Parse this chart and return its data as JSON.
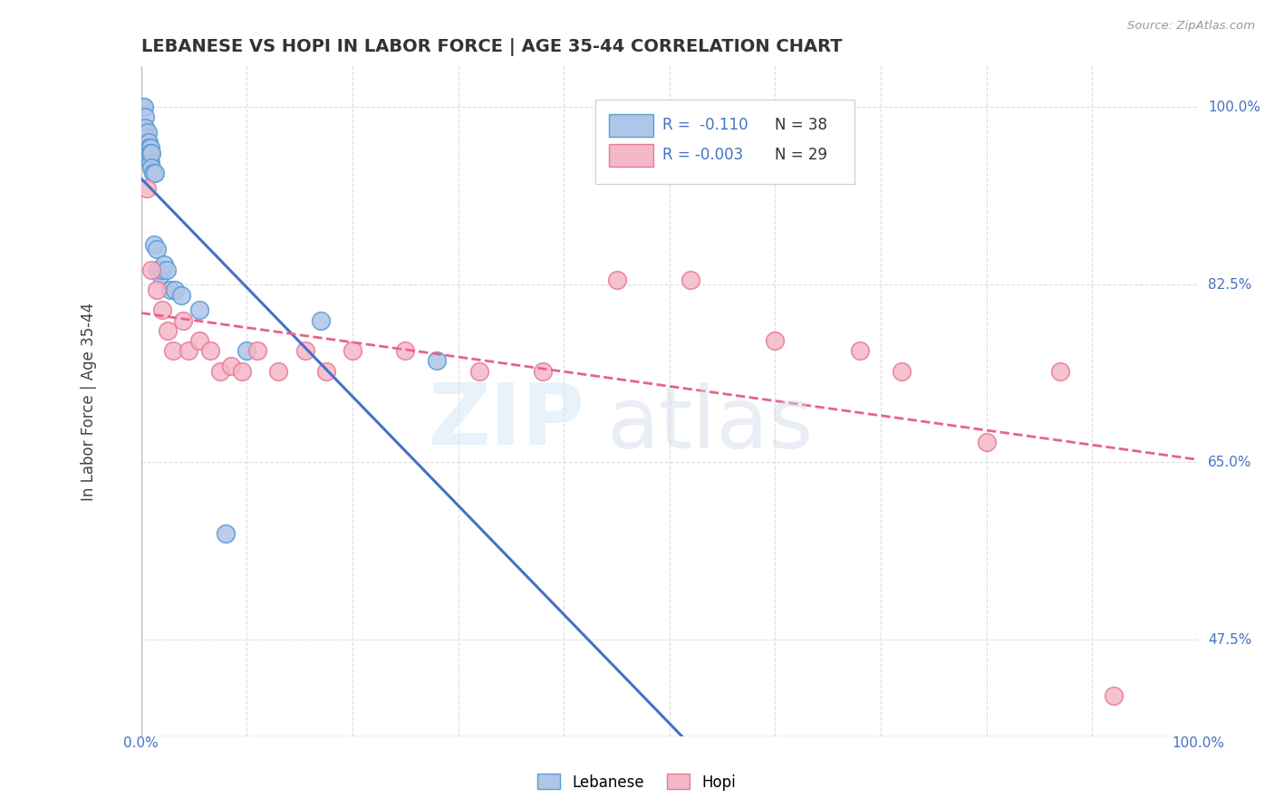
{
  "title": "LEBANESE VS HOPI IN LABOR FORCE | AGE 35-44 CORRELATION CHART",
  "source_text": "Source: ZipAtlas.com",
  "ylabel": "In Labor Force | Age 35-44",
  "x_min": 0.0,
  "x_max": 1.0,
  "y_min": 0.38,
  "y_max": 1.04,
  "ytick_labels": [
    "47.5%",
    "65.0%",
    "82.5%",
    "100.0%"
  ],
  "ytick_values": [
    0.475,
    0.65,
    0.825,
    1.0
  ],
  "xtick_values": [
    0.0,
    0.1,
    0.2,
    0.3,
    0.4,
    0.5,
    0.6,
    0.7,
    0.8,
    0.9,
    1.0
  ],
  "lebanese_color": "#aec6e8",
  "lebanese_edge_color": "#5b9bd5",
  "hopi_color": "#f4b8c8",
  "hopi_edge_color": "#e87a9a",
  "lebanese_line_color": "#4472c4",
  "hopi_line_color": "#e8628a",
  "legend_R_lebanese": "R =  -0.110",
  "legend_N_lebanese": "N = 38",
  "legend_R_hopi": "R = -0.003",
  "legend_N_hopi": "N = 29",
  "watermark_zip": "ZIP",
  "watermark_atlas": "atlas",
  "lebanese_x": [
    0.002,
    0.003,
    0.004,
    0.004,
    0.005,
    0.005,
    0.005,
    0.006,
    0.006,
    0.006,
    0.007,
    0.007,
    0.007,
    0.008,
    0.008,
    0.008,
    0.009,
    0.009,
    0.009,
    0.01,
    0.01,
    0.011,
    0.012,
    0.013,
    0.015,
    0.016,
    0.018,
    0.02,
    0.022,
    0.024,
    0.028,
    0.032,
    0.038,
    0.055,
    0.08,
    0.1,
    0.17,
    0.28
  ],
  "lebanese_y": [
    1.0,
    1.0,
    0.99,
    0.98,
    0.97,
    0.965,
    0.955,
    0.975,
    0.96,
    0.95,
    0.965,
    0.96,
    0.955,
    0.96,
    0.955,
    0.95,
    0.96,
    0.955,
    0.945,
    0.955,
    0.94,
    0.935,
    0.865,
    0.935,
    0.86,
    0.84,
    0.835,
    0.84,
    0.845,
    0.84,
    0.82,
    0.82,
    0.815,
    0.8,
    0.58,
    0.76,
    0.79,
    0.75
  ],
  "hopi_x": [
    0.005,
    0.01,
    0.015,
    0.02,
    0.025,
    0.03,
    0.04,
    0.045,
    0.055,
    0.065,
    0.075,
    0.085,
    0.095,
    0.11,
    0.13,
    0.155,
    0.175,
    0.2,
    0.25,
    0.32,
    0.38,
    0.45,
    0.52,
    0.6,
    0.68,
    0.72,
    0.8,
    0.87,
    0.92
  ],
  "hopi_y": [
    0.92,
    0.84,
    0.82,
    0.8,
    0.78,
    0.76,
    0.79,
    0.76,
    0.77,
    0.76,
    0.74,
    0.745,
    0.74,
    0.76,
    0.74,
    0.76,
    0.74,
    0.76,
    0.76,
    0.74,
    0.74,
    0.83,
    0.83,
    0.77,
    0.76,
    0.74,
    0.67,
    0.74,
    0.42
  ],
  "background_color": "#ffffff",
  "grid_color": "#dddddd"
}
